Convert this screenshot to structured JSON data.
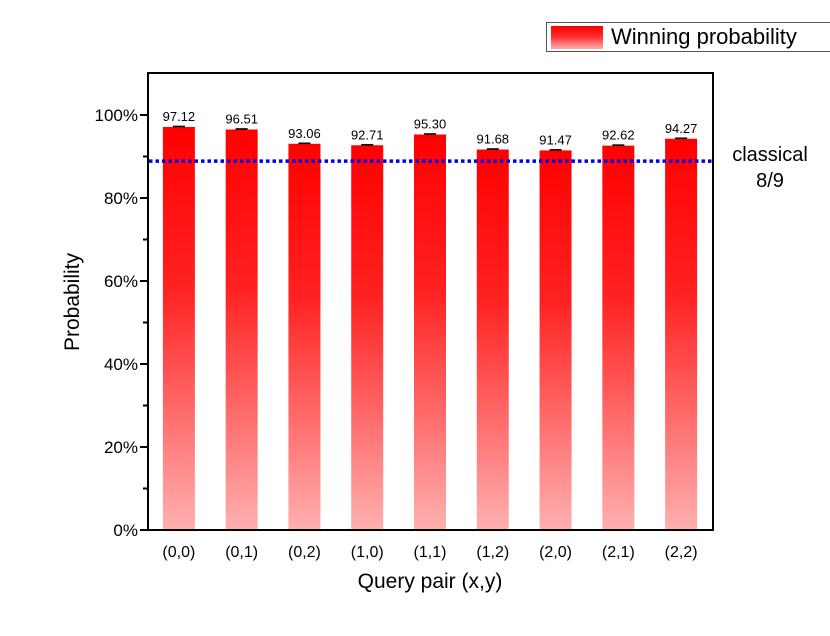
{
  "chart_data": {
    "type": "bar",
    "title": "",
    "xlabel": "Query pair (x,y)",
    "ylabel": "Probability",
    "ylim": [
      0,
      110
    ],
    "yticks": [
      "0%",
      "20%",
      "40%",
      "60%",
      "80%",
      "100%"
    ],
    "ytick_values": [
      0,
      20,
      40,
      60,
      80,
      100
    ],
    "grid": false,
    "categories": [
      "(0,0)",
      "(0,1)",
      "(0,2)",
      "(1,0)",
      "(1,1)",
      "(1,2)",
      "(2,0)",
      "(2,1)",
      "(2,2)"
    ],
    "series": [
      {
        "name": "Winning probability",
        "values": [
          97.12,
          96.51,
          93.06,
          92.71,
          95.3,
          91.68,
          91.47,
          92.62,
          94.27
        ],
        "labels": [
          "97.12",
          "96.51",
          "93.06",
          "92.71",
          "95.30",
          "91.68",
          "91.47",
          "92.62",
          "94.27"
        ],
        "color_top": "#ff0000",
        "color_bottom": "#ffb0b0",
        "error_bars": true
      }
    ],
    "reference_line": {
      "value": 88.89,
      "label_line1": "classical",
      "label_line2": "8/9",
      "color": "#0000ee",
      "style": "dotted"
    },
    "legend": {
      "position": "top-right, outside",
      "entries": [
        "Winning probability"
      ]
    }
  },
  "legend": {
    "label": "Winning probability"
  },
  "annotation": {
    "line1": "classical",
    "line2": "8/9"
  },
  "axes": {
    "xlabel": "Query pair (x,y)",
    "ylabel": "Probability"
  }
}
